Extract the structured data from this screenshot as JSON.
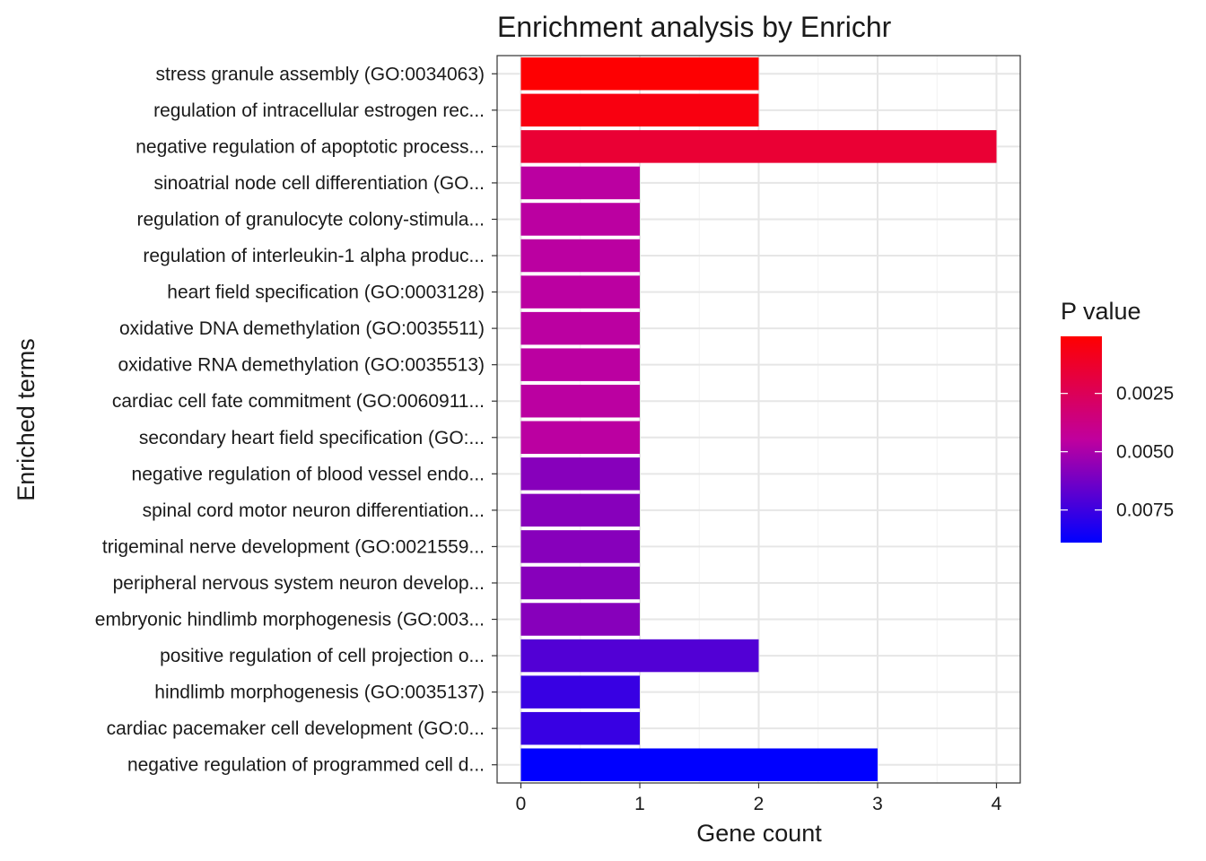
{
  "chart_data": {
    "type": "bar",
    "orientation": "horizontal",
    "title": "Enrichment analysis by Enrichr",
    "xlabel": "Gene count",
    "ylabel": "Enriched terms",
    "xlim": [
      -0.2,
      4.2
    ],
    "xticks": [
      0,
      1,
      2,
      3,
      4
    ],
    "grid": true,
    "legend": {
      "title": "P value",
      "position": "right",
      "range": [
        5e-05,
        0.0089
      ],
      "ticks": [
        "0.0025",
        "0.0050",
        "0.0075"
      ],
      "tick_values": [
        0.0025,
        0.005,
        0.0075
      ],
      "low_color": "#ff0000",
      "high_color": "#0000ff"
    },
    "categories": [
      "stress granule assembly (GO:0034063)",
      "regulation of intracellular estrogen rec...",
      "negative regulation of apoptotic process...",
      "sinoatrial node cell differentiation (GO...",
      "regulation of granulocyte colony-stimula...",
      "regulation of interleukin-1 alpha produc...",
      "heart field specification (GO:0003128)",
      "oxidative DNA demethylation (GO:0035511)",
      "oxidative RNA demethylation (GO:0035513)",
      "cardiac cell fate commitment (GO:0060911...",
      "secondary heart field specification (GO:...",
      "negative regulation of blood vessel endo...",
      "spinal cord motor neuron differentiation...",
      "trigeminal nerve development (GO:0021559...",
      "peripheral nervous system neuron develop...",
      "embryonic hindlimb morphogenesis (GO:003...",
      "positive regulation of cell projection o...",
      "hindlimb morphogenesis (GO:0035137)",
      "cardiac pacemaker cell development (GO:0...",
      "negative regulation of programmed cell d..."
    ],
    "values": [
      2,
      2,
      4,
      1,
      1,
      1,
      1,
      1,
      1,
      1,
      1,
      1,
      1,
      1,
      1,
      1,
      2,
      1,
      1,
      3
    ],
    "p_values": [
      0.0001,
      0.0005,
      0.0015,
      0.0046,
      0.0046,
      0.0046,
      0.0046,
      0.0046,
      0.0046,
      0.0046,
      0.0046,
      0.0058,
      0.0058,
      0.0058,
      0.0058,
      0.0058,
      0.007,
      0.0076,
      0.0076,
      0.0089
    ]
  }
}
